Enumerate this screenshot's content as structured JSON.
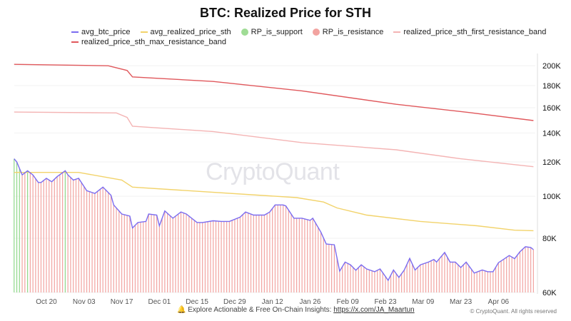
{
  "chart_data": {
    "type": "line",
    "title": "BTC: Realized Price for STH",
    "y_scale": "log",
    "ylim": [
      60000,
      210000
    ],
    "y_ticks": [
      "60K",
      "80K",
      "100K",
      "120K",
      "140K",
      "160K",
      "180K",
      "200K"
    ],
    "y_tick_values": [
      60000,
      80000,
      100000,
      120000,
      140000,
      160000,
      180000,
      200000
    ],
    "x_ticks": [
      "Oct 20",
      "Nov 03",
      "Nov 17",
      "Dec 01",
      "Dec 15",
      "Dec 29",
      "Jan 12",
      "Jan 26",
      "Feb 09",
      "Feb 23",
      "Mar 09",
      "Mar 23",
      "Apr 06"
    ],
    "grid": true,
    "legend_placement": "top",
    "legend": [
      {
        "name": "avg_btc_price",
        "color": "#7b6cf0",
        "marker": "line"
      },
      {
        "name": "avg_realized_price_sth",
        "color": "#f2d36b",
        "marker": "line"
      },
      {
        "name": "RP_is_support",
        "color": "#9fdc95",
        "marker": "dot"
      },
      {
        "name": "RP_is_resistance",
        "color": "#f2a3a0",
        "marker": "dot"
      },
      {
        "name": "realized_price_sth_first_resistance_band",
        "color": "#f4b4b4",
        "marker": "line"
      },
      {
        "name": "realized_price_sth_max_resistance_band",
        "color": "#e0585c",
        "marker": "line"
      }
    ],
    "series": [
      {
        "name": "avg_btc_price",
        "x": [
          "Oct 08",
          "Oct 09",
          "Oct 11",
          "Oct 13",
          "Oct 15",
          "Oct 17",
          "Oct 18",
          "Oct 20",
          "Oct 22",
          "Oct 24",
          "Oct 27",
          "Oct 28",
          "Oct 30",
          "Nov 01",
          "Nov 04",
          "Nov 07",
          "Nov 10",
          "Nov 13",
          "Nov 14",
          "Nov 17",
          "Nov 20",
          "Nov 21",
          "Nov 23",
          "Nov 26",
          "Nov 27",
          "Nov 30",
          "Dec 01",
          "Dec 03",
          "Dec 06",
          "Dec 09",
          "Dec 11",
          "Dec 15",
          "Dec 17",
          "Dec 21",
          "Dec 24",
          "Dec 27",
          "Dec 31",
          "Jan 02",
          "Jan 05",
          "Jan 09",
          "Jan 11",
          "Jan 13",
          "Jan 16",
          "Jan 17",
          "Jan 20",
          "Jan 23",
          "Jan 26",
          "Jan 27",
          "Jan 30",
          "Feb 01",
          "Feb 04",
          "Feb 06",
          "Feb 08",
          "Feb 10",
          "Feb 12",
          "Feb 14",
          "Feb 16",
          "Feb 19",
          "Feb 21",
          "Feb 24",
          "Feb 26",
          "Feb 28",
          "Mar 02",
          "Mar 04",
          "Mar 06",
          "Mar 08",
          "Mar 11",
          "Mar 13",
          "Mar 14",
          "Mar 17",
          "Mar 19",
          "Mar 21",
          "Mar 23",
          "Mar 25",
          "Mar 28",
          "Mar 31",
          "Apr 02",
          "Apr 04",
          "Apr 06",
          "Apr 08",
          "Apr 10",
          "Apr 12",
          "Apr 14",
          "Apr 16",
          "Apr 18",
          "Apr 19"
        ],
        "values": [
          122000,
          120000,
          112000,
          114500,
          112000,
          107600,
          107600,
          110000,
          108000,
          111000,
          114500,
          112000,
          109000,
          110000,
          103000,
          101500,
          105000,
          100500,
          95500,
          91000,
          90000,
          84500,
          87000,
          87500,
          91000,
          90500,
          85500,
          92500,
          89000,
          92000,
          91000,
          87000,
          87000,
          87800,
          87500,
          87500,
          89500,
          92000,
          90500,
          90500,
          92000,
          95500,
          95500,
          95000,
          89000,
          89000,
          88000,
          89000,
          82700,
          77600,
          77300,
          67200,
          70500,
          69500,
          67500,
          69500,
          68000,
          67000,
          68000,
          64000,
          67600,
          65000,
          67600,
          71900,
          67600,
          69500,
          70500,
          71500,
          70500,
          74200,
          70500,
          70500,
          68500,
          70500,
          66500,
          67600,
          67000,
          67000,
          70300,
          71600,
          73000,
          71800,
          74500,
          76500,
          76200,
          75300
        ]
      },
      {
        "name": "avg_realized_price_sth",
        "x": [
          "Oct 08",
          "Nov 01",
          "Nov 17",
          "Nov 21",
          "Jan 13",
          "Jan 21",
          "Jan 31",
          "Feb 05",
          "Feb 16",
          "Mar 08",
          "Mar 29",
          "Apr 12",
          "Apr 19"
        ],
        "values": [
          113500,
          113500,
          109000,
          105000,
          100000,
          99300,
          97000,
          94000,
          90500,
          87500,
          85500,
          83500,
          83300
        ]
      },
      {
        "name": "realized_price_sth_first_resistance_band",
        "x": [
          "Oct 08",
          "Nov 15",
          "Nov 19",
          "Nov 21",
          "Dec 21",
          "Jan 23",
          "Feb 27",
          "Mar 23",
          "Apr 19"
        ],
        "values": [
          156400,
          155700,
          152000,
          145000,
          141000,
          133000,
          128000,
          122000,
          117000
        ]
      },
      {
        "name": "realized_price_sth_max_resistance_band",
        "x": [
          "Oct 08",
          "Nov 12",
          "Nov 19",
          "Nov 21",
          "Dec 21",
          "Jan 23",
          "Feb 27",
          "Mar 26",
          "Apr 19"
        ],
        "values": [
          201500,
          200000,
          195000,
          188500,
          184000,
          175000,
          163000,
          156000,
          149500
        ]
      }
    ]
  },
  "watermark": "CryptoQuant",
  "footer": {
    "text": "Explore Actionable & Free On-Chain Insights: ",
    "link": "https://x.com/JA_Maartun",
    "icon": "bell-icon",
    "copyright": "© CryptoQuant. All rights reserved"
  }
}
